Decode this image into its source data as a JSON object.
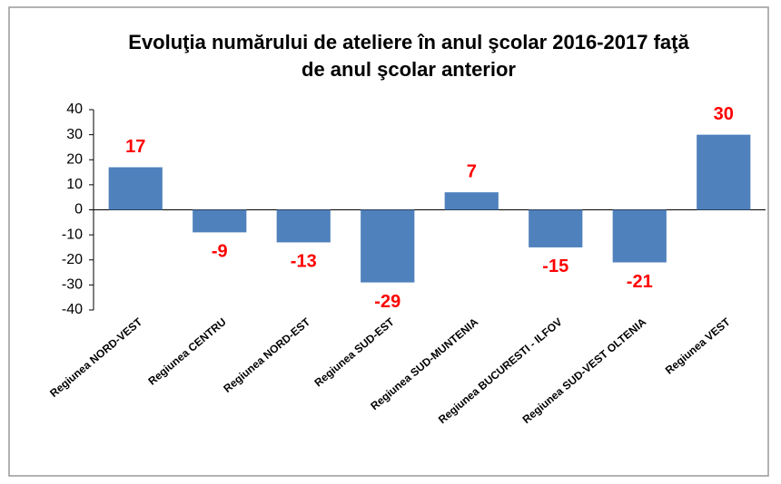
{
  "chart_data": {
    "type": "bar",
    "title": [
      "Evoluţia numărului de ateliere în anul şcolar 2016-2017  faţă",
      "de anul şcolar anterior"
    ],
    "categories": [
      "Regiunea NORD-VEST",
      "Regiunea CENTRU",
      "Regiunea NORD-EST",
      "Regiunea SUD-EST",
      "Regiunea SUD-MUNTENIA",
      "Regiunea BUCURESTI - ILFOV",
      "Regiunea SUD-VEST OLTENIA",
      "Regiunea VEST"
    ],
    "values": [
      17,
      -9,
      -13,
      -29,
      7,
      -15,
      -21,
      30
    ],
    "color": "#4f81bd",
    "label_color": "#ff0000",
    "ylim": [
      -40,
      40
    ],
    "yticks": [
      -40,
      -30,
      -20,
      -10,
      0,
      10,
      20,
      30,
      40
    ],
    "grid": false
  }
}
